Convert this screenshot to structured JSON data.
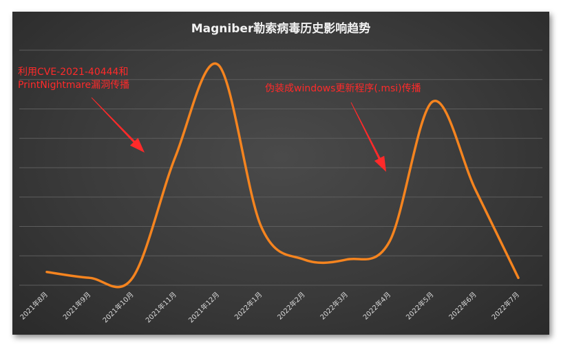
{
  "chart_data": {
    "type": "line",
    "title": "Magniber勒索病毒历史影响趋势",
    "xlabel": "",
    "ylabel": "",
    "categories": [
      "2021年8月",
      "2021年9月",
      "2021年10月",
      "2021年11月",
      "2021年12月",
      "2022年1月",
      "2022年2月",
      "2022年3月",
      "2022年4月",
      "2022年5月",
      "2022年6月",
      "2022年7月"
    ],
    "values": [
      18,
      10,
      10,
      175,
      300,
      80,
      35,
      35,
      60,
      250,
      130,
      10
    ],
    "ylim": [
      0,
      320
    ],
    "grid": true,
    "smooth": true,
    "legend": "none",
    "series_color": "#f5841f",
    "annotations": [
      {
        "lines": [
          "利用CVE-2021-40444和",
          "PrintNightmare漏洞传播"
        ],
        "category_index": 2,
        "value": 230
      },
      {
        "lines": [
          "伪装成windows更新程序(.msi)传播"
        ],
        "category_index": 8,
        "value": 200
      }
    ],
    "annotation_color": "#ff2a2a"
  }
}
